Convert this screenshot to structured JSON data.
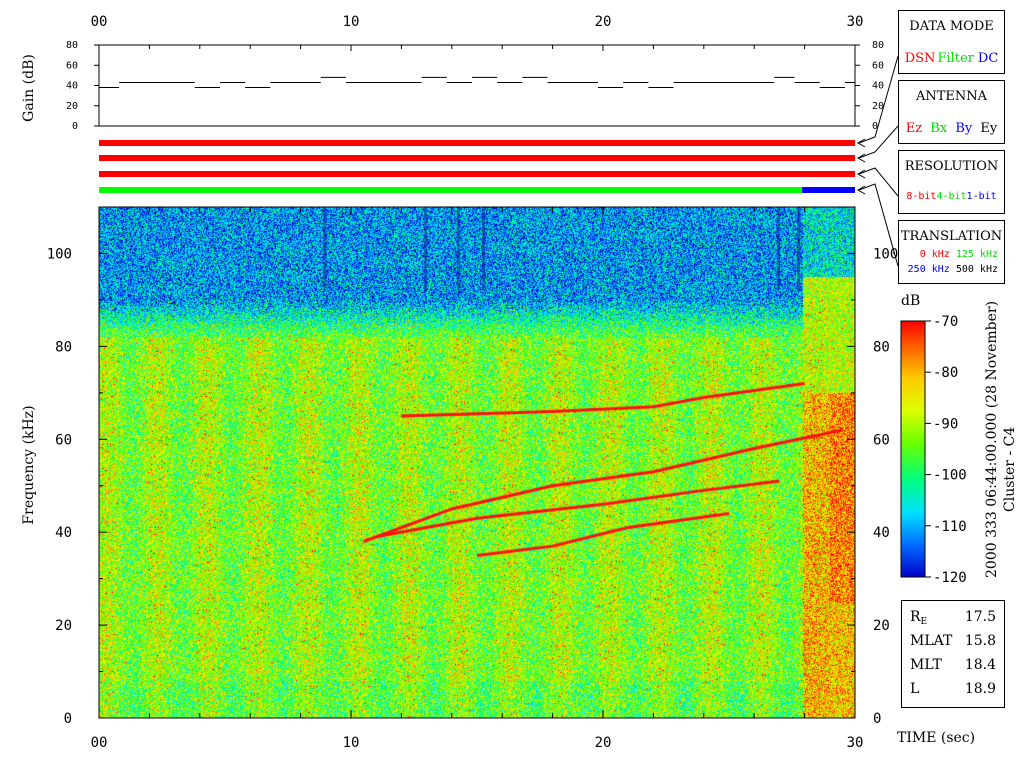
{
  "chart_data": {
    "type": "heatmap",
    "ylabel": "Frequency (kHz)",
    "xlabel": "TIME (sec)",
    "xlim": [
      0,
      30
    ],
    "ylim": [
      0,
      110
    ],
    "x_ticks": [
      "00",
      "10",
      "20",
      "30"
    ],
    "y_ticks": [
      "0",
      "20",
      "40",
      "60",
      "80",
      "100"
    ],
    "gain": {
      "ylabel": "Gain (dB)",
      "ylim": [
        0,
        80
      ],
      "y_ticks": [
        "0",
        "20",
        "40",
        "60",
        "80"
      ],
      "steps": [
        [
          0,
          0.8,
          38
        ],
        [
          0.8,
          3.8,
          43
        ],
        [
          3.8,
          4.8,
          38
        ],
        [
          4.8,
          5.8,
          43
        ],
        [
          5.8,
          6.8,
          38
        ],
        [
          6.8,
          8.8,
          43
        ],
        [
          8.8,
          9.8,
          48
        ],
        [
          9.8,
          12.8,
          43
        ],
        [
          12.8,
          13.8,
          48
        ],
        [
          13.8,
          14.8,
          43
        ],
        [
          14.8,
          15.8,
          48
        ],
        [
          15.8,
          16.8,
          43
        ],
        [
          16.8,
          17.8,
          48
        ],
        [
          17.8,
          19.8,
          43
        ],
        [
          19.8,
          20.8,
          38
        ],
        [
          20.8,
          21.8,
          43
        ],
        [
          21.8,
          22.8,
          38
        ],
        [
          22.8,
          26.8,
          43
        ],
        [
          26.8,
          27.6,
          48
        ],
        [
          27.6,
          28.6,
          43
        ],
        [
          28.6,
          29.6,
          38
        ],
        [
          29.6,
          30,
          43
        ]
      ]
    },
    "status_bars": [
      {
        "segments": [
          {
            "from": 0,
            "to": 30,
            "color": "#ff0000"
          }
        ]
      },
      {
        "segments": [
          {
            "from": 0,
            "to": 30,
            "color": "#ff0000"
          }
        ]
      },
      {
        "segments": [
          {
            "from": 0,
            "to": 30,
            "color": "#ff0000"
          }
        ]
      },
      {
        "segments": [
          {
            "from": 0,
            "to": 27.9,
            "color": "#00ff00"
          },
          {
            "from": 27.9,
            "to": 30,
            "color": "#0000ff"
          }
        ]
      }
    ],
    "colorbar": {
      "label": "dB",
      "range": [
        -120,
        -70
      ],
      "ticks": [
        "-70",
        "-80",
        "-90",
        "-100",
        "-110",
        "-120"
      ]
    },
    "tracks": [
      [
        [
          10.5,
          38
        ],
        [
          14,
          45
        ],
        [
          18,
          50
        ],
        [
          22,
          53
        ],
        [
          26,
          58
        ],
        [
          29.5,
          62
        ]
      ],
      [
        [
          12,
          65
        ],
        [
          18,
          66
        ],
        [
          22,
          67
        ],
        [
          24,
          69
        ],
        [
          28,
          72
        ]
      ],
      [
        [
          11,
          39
        ],
        [
          15,
          43
        ],
        [
          20,
          46
        ],
        [
          24,
          49
        ],
        [
          27,
          51
        ]
      ],
      [
        [
          15,
          35
        ],
        [
          18,
          37
        ],
        [
          21,
          41
        ],
        [
          25,
          44
        ]
      ]
    ]
  },
  "panels": {
    "data_mode": {
      "title": "DATA MODE",
      "items": [
        {
          "text": "DSN",
          "color": "#ff0000"
        },
        {
          "text": "Filter",
          "color": "#00dd00"
        },
        {
          "text": "DC",
          "color": "#0000ff"
        }
      ]
    },
    "antenna": {
      "title": "ANTENNA",
      "items": [
        {
          "text": "Ez",
          "color": "#ff0000"
        },
        {
          "text": "Bx",
          "color": "#00dd00"
        },
        {
          "text": "By",
          "color": "#0000ff"
        },
        {
          "text": "Ey",
          "color": "#000000"
        }
      ]
    },
    "resolution": {
      "title": "RESOLUTION",
      "items": [
        {
          "text": "8-bit",
          "color": "#ff0000"
        },
        {
          "text": "4-bit",
          "color": "#00dd00"
        },
        {
          "text": "1-bit",
          "color": "#0000ff"
        }
      ]
    },
    "translation": {
      "title": "TRANSLATION",
      "items": [
        {
          "text": "0 kHz",
          "color": "#ff0000"
        },
        {
          "text": "125 kHz",
          "color": "#00dd00"
        },
        {
          "text": "250 kHz",
          "color": "#0000ff"
        },
        {
          "text": "500 kHz",
          "color": "#000000"
        }
      ]
    }
  },
  "caption": {
    "line1": "2000 333 06:44:00.000 (28 November)",
    "line2": "Cluster - C4"
  },
  "ephemeris": {
    "re_label": "R",
    "re_sub": "E",
    "re": "17.5",
    "mlat_label": "MLAT",
    "mlat": "15.8",
    "mlt_label": "MLT",
    "mlt": "18.4",
    "l_label": "L",
    "l": "18.9"
  }
}
